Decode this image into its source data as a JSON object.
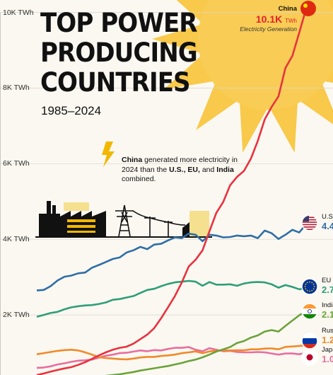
{
  "title_lines": [
    "TOP POWER",
    "PRODUCING",
    "COUNTRIES"
  ],
  "subtitle": "1985–2024",
  "annotation": {
    "parts": [
      {
        "text": "China",
        "bold": true
      },
      {
        "text": " generated more electricity in 2024 than the ",
        "bold": false
      },
      {
        "text": "U.S., EU,",
        "bold": true
      },
      {
        "text": " and ",
        "bold": false
      },
      {
        "text": "India",
        "bold": true
      },
      {
        "text": " combined.",
        "bold": false
      }
    ]
  },
  "china_label": {
    "name": "China",
    "value": "10.1K",
    "unit": "TWh",
    "caption": "Electricity Generation"
  },
  "end_labels": [
    {
      "name": "U.S.",
      "value": "4.4",
      "color": "#2f6ea6",
      "flag": "us-flag"
    },
    {
      "name": "EU",
      "value": "2.7",
      "color": "#2e9e7a",
      "flag": "eu-flag"
    },
    {
      "name": "India",
      "value": "2.1",
      "color": "#6aa33a",
      "flag": "india-flag"
    },
    {
      "name": "Russia",
      "value": "1.2",
      "color": "#ef8a2a",
      "flag": "russia-flag"
    },
    {
      "name": "Japan",
      "value": "1.0",
      "color": "#e86e9f",
      "flag": "japan-flag"
    }
  ],
  "chart_data": {
    "type": "line",
    "ytick_labels": [
      "2K TWh",
      "4K TWh",
      "6K TWh",
      "8K TWh",
      "10K TWh"
    ],
    "yticks": [
      2000,
      4000,
      6000,
      8000,
      10000
    ],
    "ylim": [
      0,
      10000
    ],
    "xlim": [
      1985,
      2024
    ],
    "x": [
      1985,
      1986,
      1987,
      1988,
      1989,
      1990,
      1991,
      1992,
      1993,
      1994,
      1995,
      1996,
      1997,
      1998,
      1999,
      2000,
      2001,
      2002,
      2003,
      2004,
      2005,
      2006,
      2007,
      2008,
      2009,
      2010,
      2011,
      2012,
      2013,
      2014,
      2015,
      2016,
      2017,
      2018,
      2019,
      2020,
      2021,
      2022,
      2023,
      2024
    ],
    "series": [
      {
        "name": "China",
        "color": "#e8323f",
        "values": [
          410,
          450,
          500,
          545,
          585,
          620,
          680,
          750,
          840,
          930,
          1010,
          1080,
          1130,
          1160,
          1240,
          1360,
          1480,
          1650,
          1910,
          2200,
          2500,
          2860,
          3280,
          3460,
          3710,
          4210,
          4700,
          4990,
          5430,
          5650,
          5810,
          6130,
          6600,
          7170,
          7500,
          7780,
          8530,
          8850,
          9460,
          10100
        ]
      },
      {
        "name": "U.S.",
        "color": "#2f6ea6",
        "values": [
          2650,
          2660,
          2760,
          2910,
          3010,
          3040,
          3100,
          3120,
          3250,
          3320,
          3400,
          3480,
          3520,
          3650,
          3710,
          3800,
          3740,
          3860,
          3880,
          3970,
          4050,
          4030,
          4150,
          4120,
          3950,
          4120,
          4100,
          4050,
          4060,
          4100,
          4080,
          4100,
          4030,
          4230,
          4160,
          4010,
          4120,
          4250,
          4180,
          4400
        ]
      },
      {
        "name": "EU",
        "color": "#2e9e7a",
        "values": [
          1950,
          2000,
          2050,
          2080,
          2150,
          2200,
          2230,
          2250,
          2260,
          2290,
          2330,
          2400,
          2420,
          2460,
          2500,
          2580,
          2660,
          2690,
          2760,
          2820,
          2860,
          2880,
          2900,
          2880,
          2770,
          2870,
          2800,
          2800,
          2810,
          2770,
          2830,
          2860,
          2870,
          2860,
          2810,
          2720,
          2790,
          2740,
          2680,
          2700
        ]
      },
      {
        "name": "India",
        "color": "#6aa33a",
        "values": [
          170,
          190,
          205,
          225,
          245,
          270,
          290,
          310,
          330,
          360,
          390,
          410,
          430,
          460,
          490,
          530,
          560,
          590,
          620,
          650,
          690,
          730,
          780,
          820,
          880,
          950,
          1030,
          1090,
          1150,
          1260,
          1310,
          1400,
          1460,
          1560,
          1600,
          1560,
          1710,
          1850,
          1990,
          2100
        ]
      },
      {
        "name": "Russia",
        "color": "#ef8a2a",
        "values": [
          960,
          990,
          1020,
          1050,
          1070,
          1080,
          1060,
          1010,
          950,
          880,
          860,
          845,
          830,
          825,
          845,
          875,
          890,
          890,
          915,
          930,
          950,
          990,
          1010,
          1035,
          990,
          1035,
          1055,
          1065,
          1060,
          1065,
          1065,
          1090,
          1090,
          1110,
          1115,
          1090,
          1155,
          1165,
          1180,
          1200
        ]
      },
      {
        "name": "Japan",
        "color": "#e86e9f",
        "values": [
          600,
          610,
          640,
          690,
          720,
          760,
          790,
          800,
          820,
          870,
          920,
          950,
          990,
          1000,
          1030,
          1060,
          1040,
          1070,
          1060,
          1100,
          1130,
          1130,
          1150,
          1080,
          1040,
          1120,
          1080,
          1040,
          1050,
          1020,
          1010,
          1010,
          1020,
          1010,
          980,
          950,
          980,
          980,
          960,
          1000
        ]
      }
    ]
  }
}
